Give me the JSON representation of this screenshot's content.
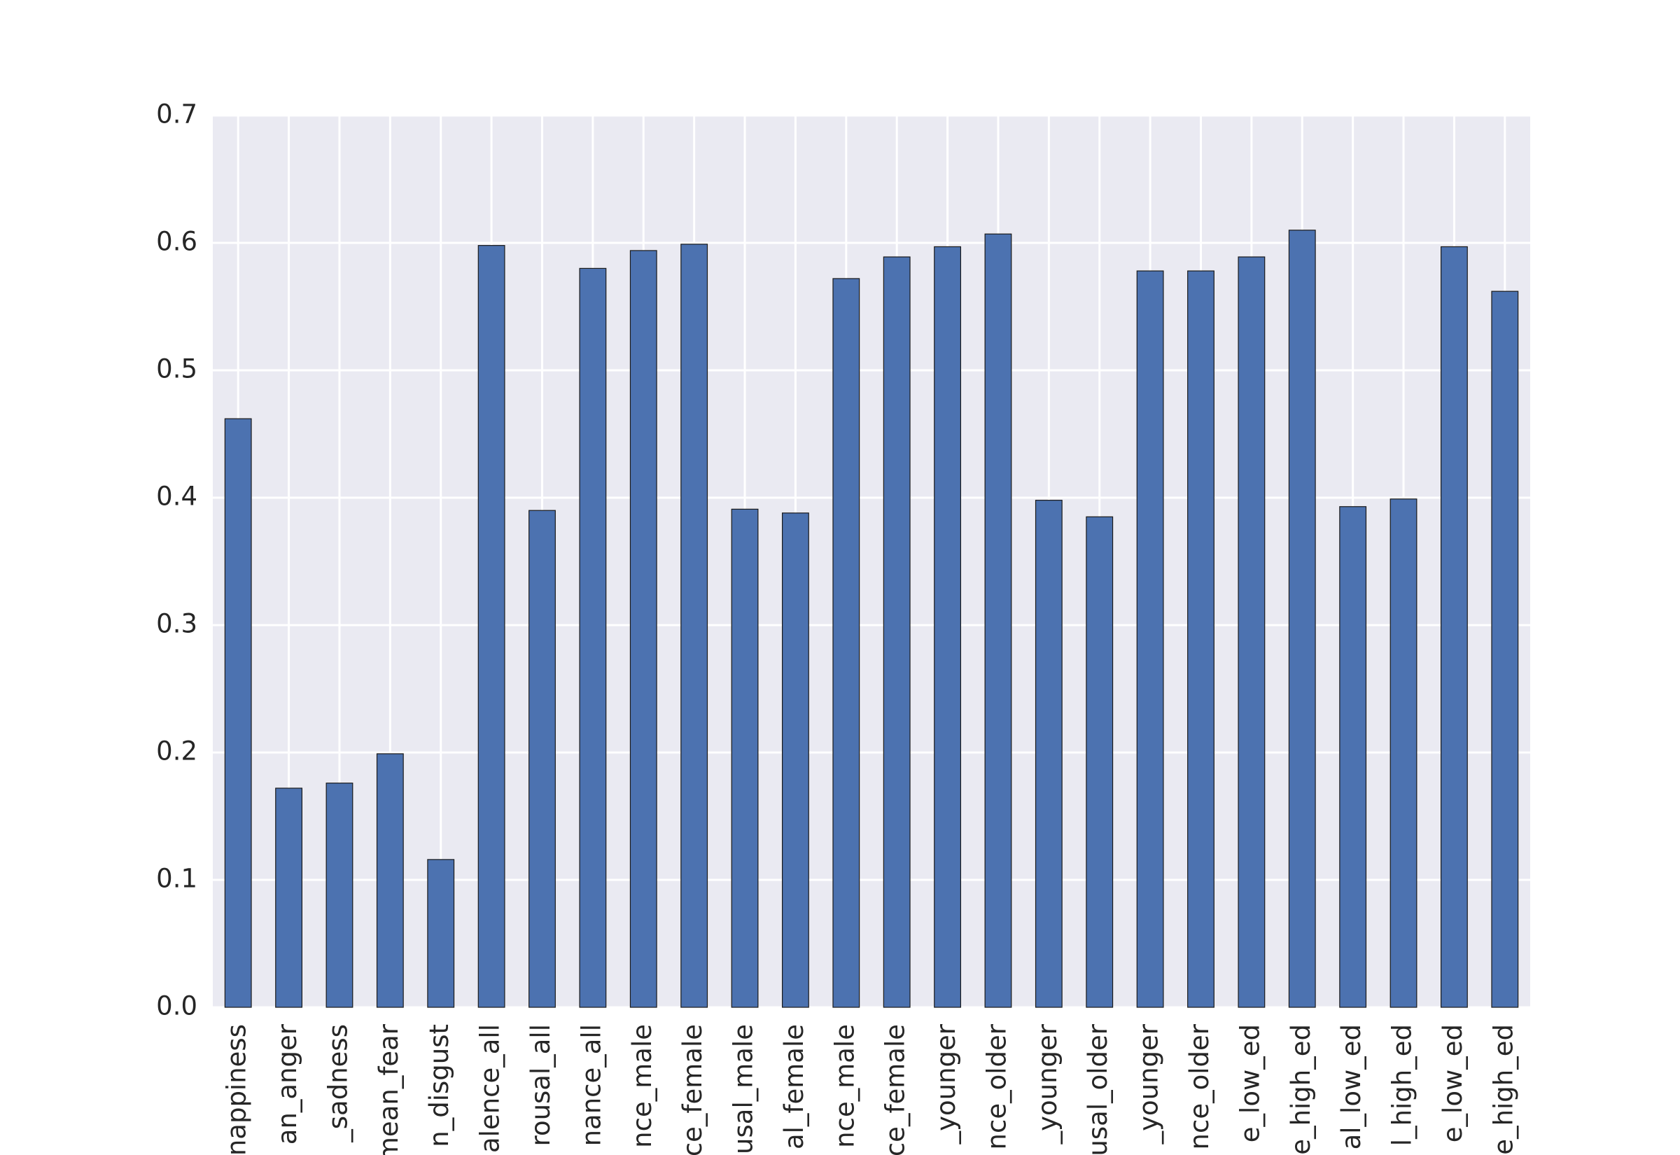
{
  "chart_data": {
    "type": "bar",
    "categories": [
      "nappiness",
      "an_anger",
      "_sadness",
      "mean_fear",
      "n_disgust",
      "alence_all",
      "rousal_all",
      "nance_all",
      "nce_male",
      "ce_female",
      "usal_male",
      "al_female",
      "nce_male",
      "ce_female",
      "_younger",
      "nce_older",
      "_younger",
      "usal_older",
      "_younger",
      "nce_older",
      "e_low_ed",
      "e_high_ed",
      "al_low_ed",
      "l_high_ed",
      "e_low_ed",
      "e_high_ed"
    ],
    "values": [
      0.462,
      0.172,
      0.176,
      0.199,
      0.116,
      0.598,
      0.39,
      0.58,
      0.594,
      0.599,
      0.391,
      0.388,
      0.572,
      0.589,
      0.597,
      0.607,
      0.398,
      0.385,
      0.578,
      0.578,
      0.589,
      0.61,
      0.393,
      0.399,
      0.597,
      0.562
    ],
    "color": "#4c72b0",
    "ylim": [
      0,
      0.7
    ],
    "yticks": [
      {
        "value": 0,
        "label": "0.0"
      },
      0.1,
      0.2,
      0.3,
      0.4,
      0.5,
      0.6,
      0.7
    ],
    "grid": true
  }
}
